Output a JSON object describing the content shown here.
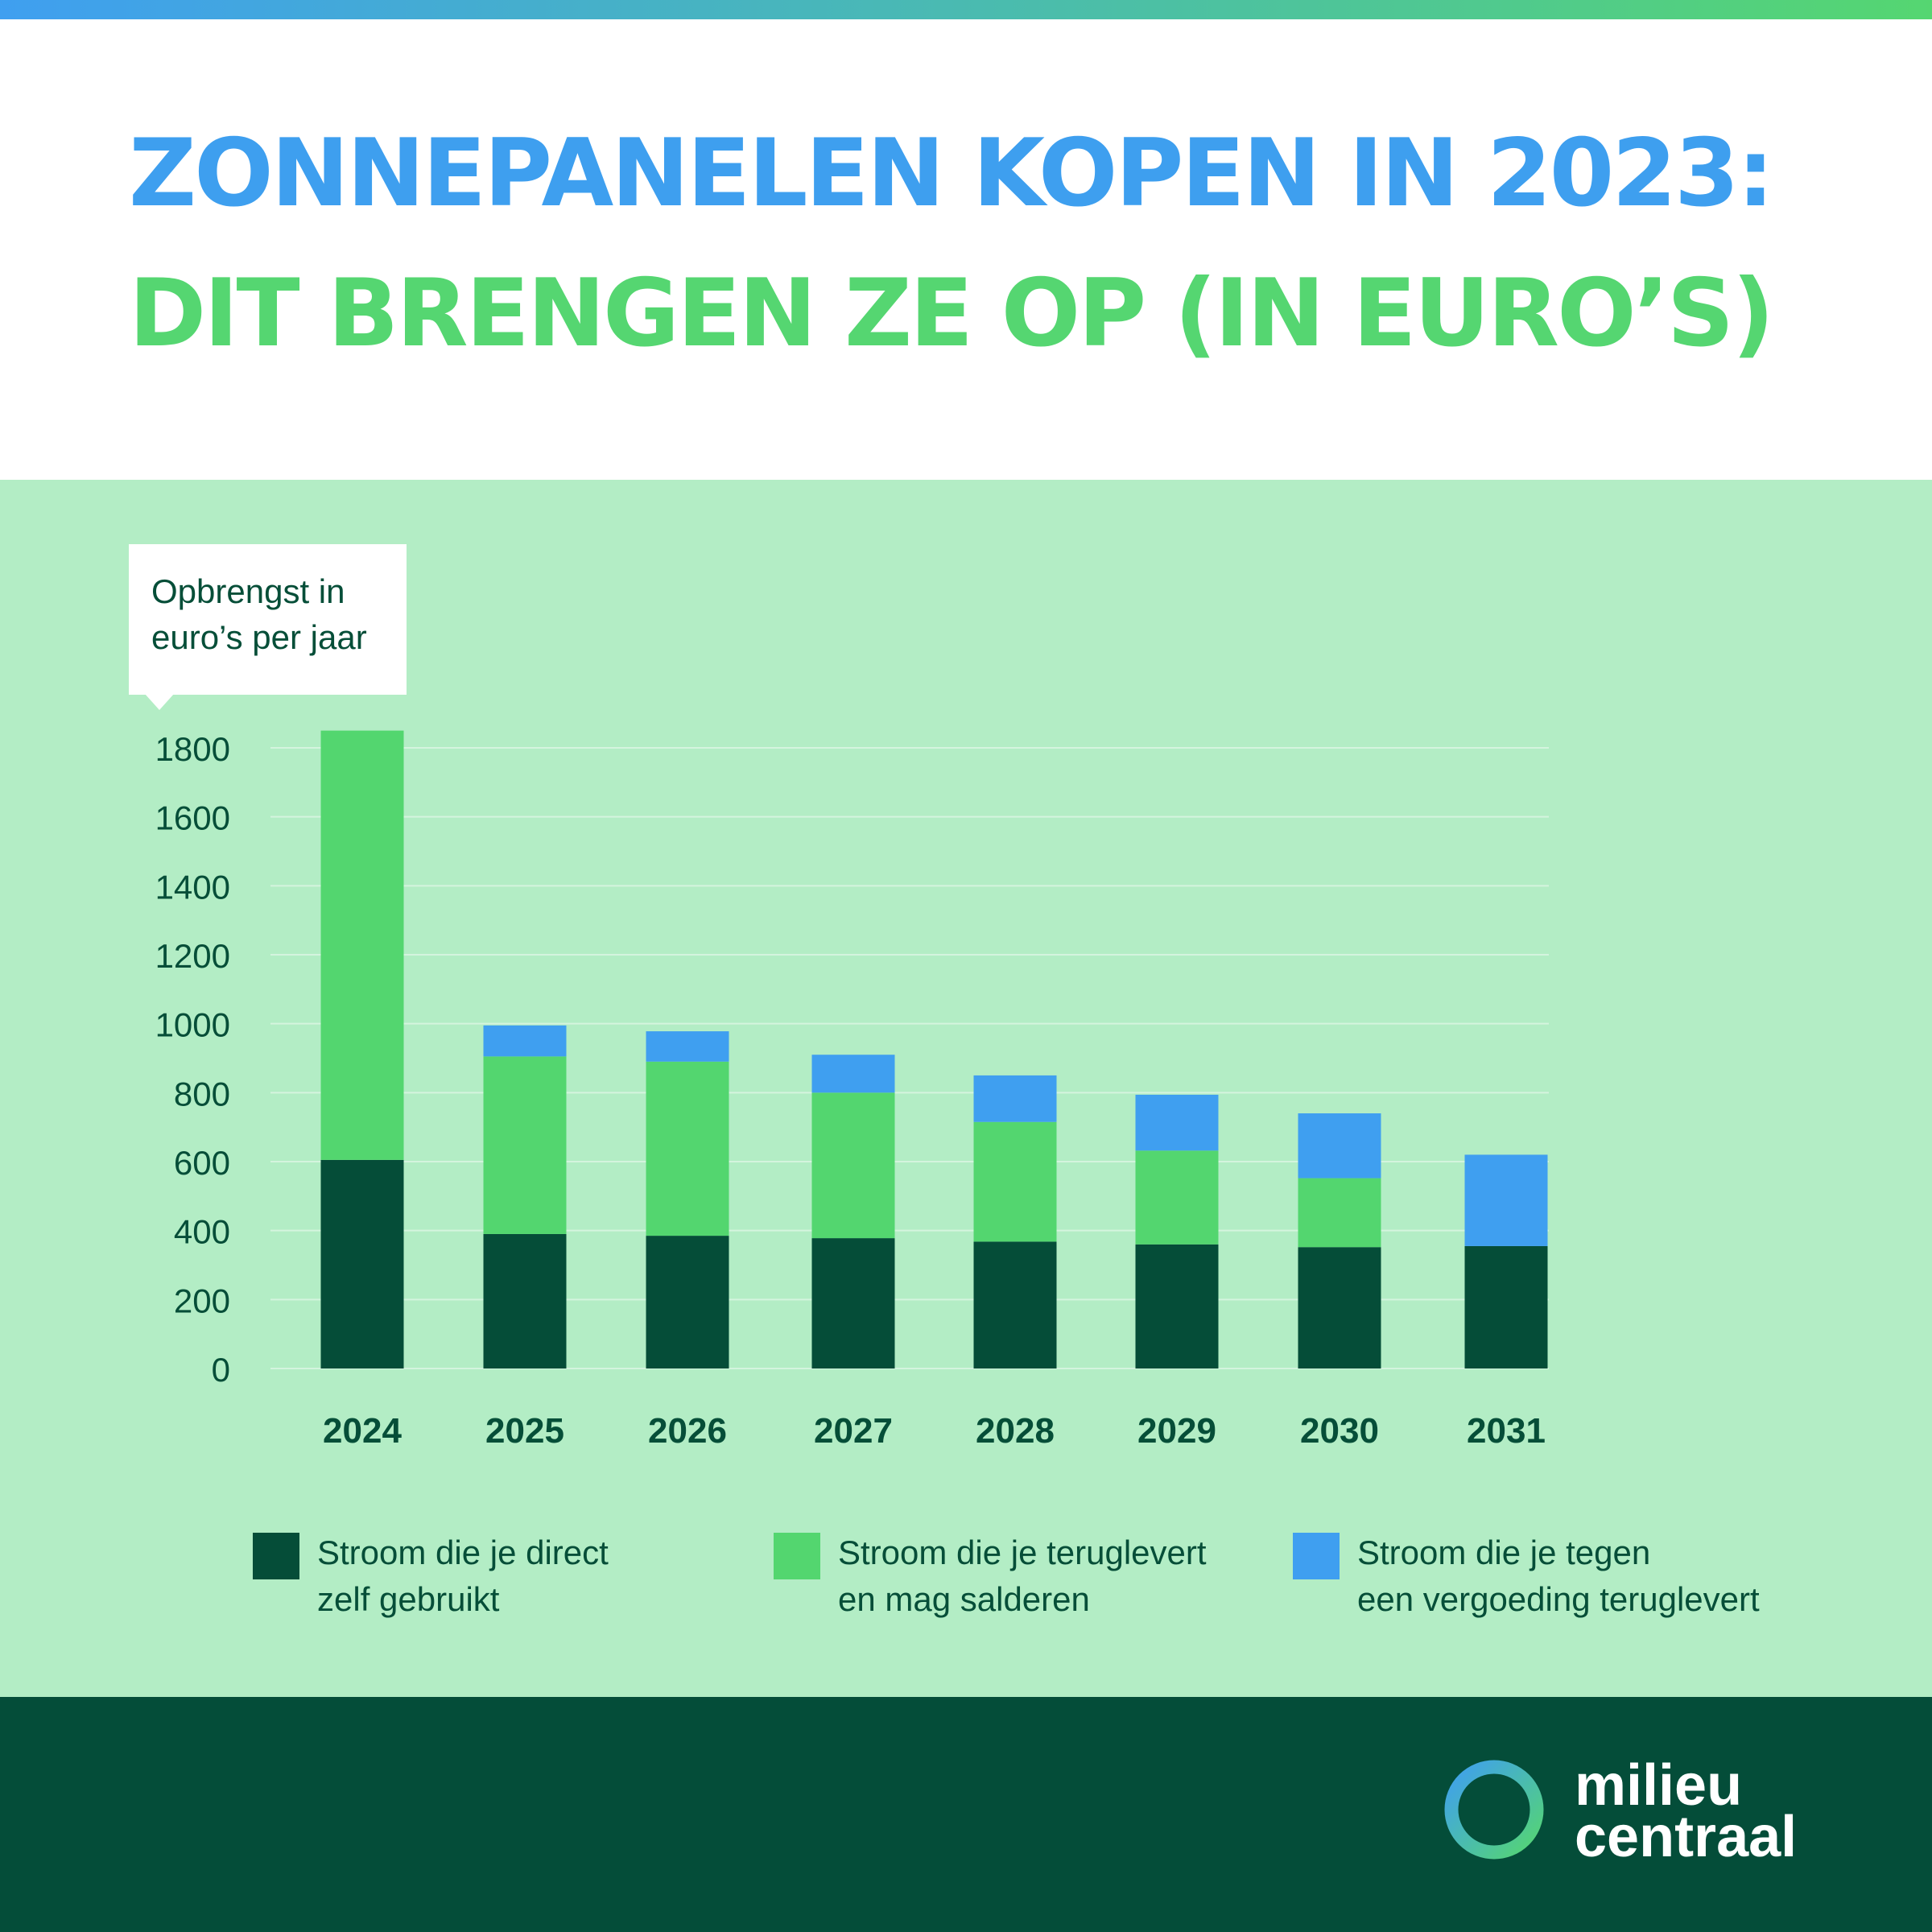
{
  "header": {
    "title_line1": "ZONNEPANELEN KOPEN IN 2023:",
    "title_line2": "DIT BRENGEN ZE OP (IN EURO’S)"
  },
  "chart_data": {
    "type": "bar",
    "stacked": true,
    "title": "ZONNEPANELEN KOPEN IN 2023: DIT BRENGEN ZE OP (IN EURO’S)",
    "ylabel_line1": "Opbrengst in",
    "ylabel_line2": "euro’s per jaar",
    "xlabel": "",
    "ylim": [
      0,
      1800
    ],
    "yticks": [
      0,
      200,
      400,
      600,
      800,
      1000,
      1200,
      1400,
      1600,
      1800
    ],
    "grid": true,
    "categories": [
      "2024",
      "2025",
      "2026",
      "2027",
      "2028",
      "2029",
      "2030",
      "2031"
    ],
    "series": [
      {
        "name": "Stroom die je direct zelf gebruikt",
        "legend_line1": "Stroom die je direct",
        "legend_line2": "zelf gebruikt",
        "color": "#054d38",
        "values": [
          605,
          390,
          385,
          378,
          368,
          360,
          352,
          355
        ]
      },
      {
        "name": "Stroom die je teruglevert en mag salderen",
        "legend_line1": "Stroom die je teruglevert",
        "legend_line2": "en mag salderen",
        "color": "#53d66f",
        "values": [
          1245,
          515,
          505,
          422,
          347,
          272,
          200,
          0
        ]
      },
      {
        "name": "Stroom die je tegen een vergoeding teruglevert",
        "legend_line1": "Stroom die je tegen",
        "legend_line2": "een vergoeding teruglevert",
        "color": "#3f9ff0",
        "values": [
          0,
          90,
          88,
          110,
          135,
          162,
          188,
          265
        ]
      }
    ],
    "legend_position": "bottom"
  },
  "footer": {
    "logo_line1": "milieu",
    "logo_line2": "centraal"
  },
  "colors": {
    "panel": "#b3edc5",
    "text_dark": "#064e38",
    "grid": "#d4f4de",
    "footer": "#044d39"
  }
}
